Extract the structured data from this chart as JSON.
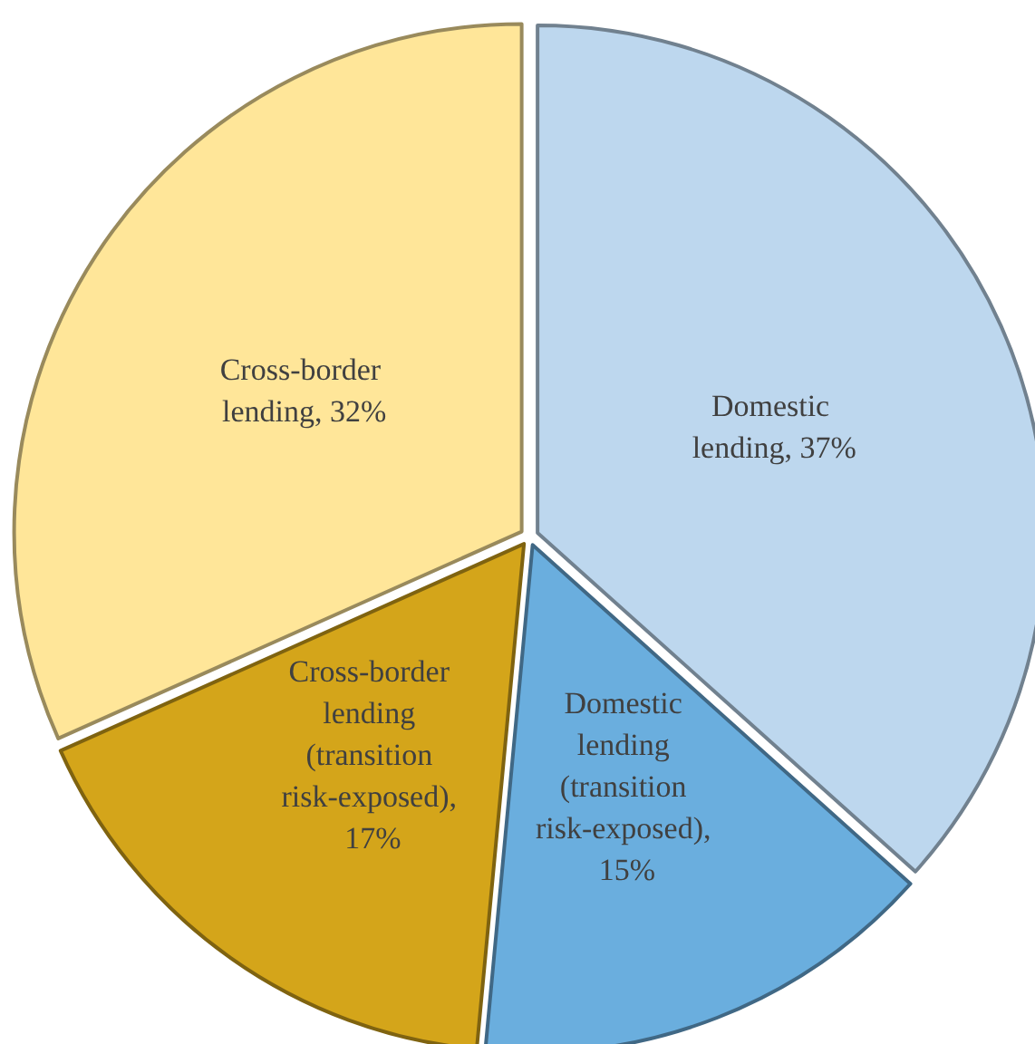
{
  "chart_data": {
    "type": "pie",
    "categories": [
      "Domestic lending",
      "Domestic lending (transition risk-exposed)",
      "Cross-border lending (transition risk-exposed)",
      "Cross-border lending"
    ],
    "values": [
      37,
      15,
      17,
      32
    ],
    "value_labels": [
      ", 37%",
      ", 15%",
      ", 17%",
      ", 32%"
    ],
    "colors": [
      "#bdd7ee",
      "#6aaede",
      "#d4a51a",
      "#ffe699"
    ],
    "legend": false
  }
}
